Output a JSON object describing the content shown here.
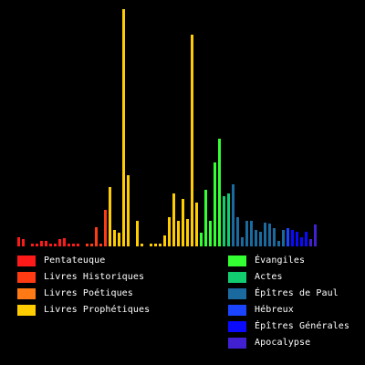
{
  "chart_data": {
    "type": "bar",
    "title": "",
    "xlabel": "",
    "ylabel": "",
    "ylim": [
      0,
      260
    ],
    "grid": false,
    "legend_position": "bottom",
    "background": "#000000",
    "series": [
      {
        "name": "Pentateuque",
        "color": "#ff1a1a",
        "values": [
          10,
          8,
          0,
          3,
          3,
          6,
          6,
          3,
          3,
          8,
          9,
          3,
          3,
          3
        ]
      },
      {
        "name": "Livres Historiques",
        "color": "#ff3b14",
        "values": [
          0,
          3,
          3,
          21,
          3,
          40
        ]
      },
      {
        "name": "Livres Poétiques",
        "color": "#ff7a14",
        "values": []
      },
      {
        "name": "Livres Prophétiques",
        "color": "#ffcc00",
        "values": [
          65,
          18,
          15,
          260,
          78,
          0,
          28,
          3,
          0,
          3,
          3,
          3,
          12,
          32,
          58,
          28,
          52,
          30,
          232,
          48
        ]
      },
      {
        "name": "Évangiles",
        "color": "#33ff33",
        "values": [
          15,
          62,
          28,
          92,
          118
        ]
      },
      {
        "name": "Actes",
        "color": "#12cc70",
        "values": [
          55,
          58
        ]
      },
      {
        "name": "Épîtres de Paul",
        "color": "#1a6aa0",
        "values": [
          68,
          32,
          10,
          28,
          28,
          18,
          16,
          26,
          25,
          20,
          6,
          18
        ]
      },
      {
        "name": "Hébreux",
        "color": "#1a44ff",
        "values": [
          20
        ]
      },
      {
        "name": "Épîtres Générales",
        "color": "#0a0aff",
        "values": [
          18,
          16,
          10,
          16
        ]
      },
      {
        "name": "Apocalypse",
        "color": "#4020d0",
        "values": [
          8,
          24
        ]
      }
    ]
  },
  "legend": {
    "left": [
      {
        "label": "Pentateuque",
        "color": "#ff1a1a"
      },
      {
        "label": "Livres Historiques",
        "color": "#ff3b14"
      },
      {
        "label": "Livres Poétiques",
        "color": "#ff7a14"
      },
      {
        "label": "Livres Prophétiques",
        "color": "#ffcc00"
      }
    ],
    "right": [
      {
        "label": "Évangiles",
        "color": "#33ff33"
      },
      {
        "label": "Actes",
        "color": "#12cc70"
      },
      {
        "label": "Épîtres de Paul",
        "color": "#1a6aa0"
      },
      {
        "label": "Hébreux",
        "color": "#1a44ff"
      },
      {
        "label": "Épîtres Générales",
        "color": "#0a0aff"
      },
      {
        "label": "Apocalypse",
        "color": "#4020d0"
      }
    ]
  }
}
